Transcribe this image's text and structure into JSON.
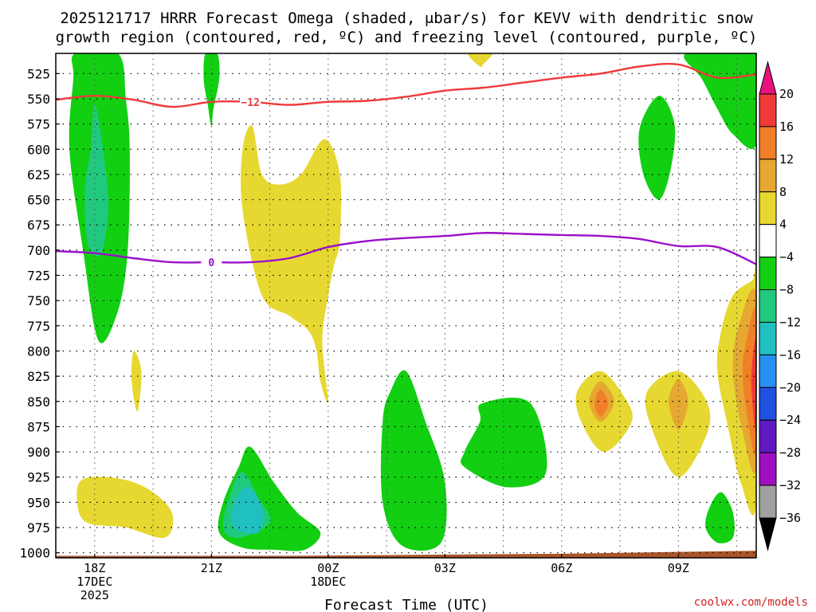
{
  "chart_data": {
    "type": "time-height cross section",
    "title_line1": "2025121717 HRRR Forecast Omega (shaded, μbar/s) for KEVV with dendritic snow",
    "title_line2": "growth region (contoured, red, ºC) and freezing level (contoured, purple, ºC)",
    "xlabel": "Forecast Time (UTC)",
    "credit": "coolwx.com/models",
    "y_ticks": [
      525,
      550,
      575,
      600,
      625,
      650,
      675,
      700,
      725,
      750,
      775,
      800,
      825,
      850,
      875,
      900,
      925,
      950,
      975,
      1000
    ],
    "y_range_hpa": [
      505,
      1005
    ],
    "x_range_hours": [
      -1,
      17
    ],
    "x_ticks": [
      {
        "hour": 0,
        "label": "18Z",
        "sub1": "17DEC",
        "sub2": "2025"
      },
      {
        "hour": 3,
        "label": "21Z",
        "sub1": "",
        "sub2": ""
      },
      {
        "hour": 6,
        "label": "00Z",
        "sub1": "18DEC",
        "sub2": ""
      },
      {
        "hour": 9,
        "label": "03Z",
        "sub1": "",
        "sub2": ""
      },
      {
        "hour": 12,
        "label": "06Z",
        "sub1": "",
        "sub2": ""
      },
      {
        "hour": 15,
        "label": "09Z",
        "sub1": "",
        "sub2": ""
      }
    ],
    "vertical_gridlines_hours": [
      1.5,
      4.5,
      7.5,
      10.5,
      13.5,
      16.5
    ],
    "colorbar": {
      "labels": [
        "20",
        "16",
        "12",
        "8",
        "4",
        "−4",
        "−8",
        "−12",
        "−16",
        "−20",
        "−24",
        "−28",
        "−32",
        "−36"
      ],
      "colors": [
        "#f03a3a",
        "#f07f28",
        "#e6a830",
        "#e6d830",
        "#ffffff",
        "#12cf12",
        "#20c97f",
        "#20c0c0",
        "#2890f0",
        "#2050e0",
        "#6018c0",
        "#a010c0",
        "#a0a0a0"
      ],
      "top_arrow_color": "#e8117f",
      "bottom_arrow_color": "#000000"
    },
    "series": [
      {
        "name": "dendritic snow growth region -12°C",
        "label": "−12",
        "color": "#f03a3a",
        "label_at_hour": 4,
        "points": [
          [
            -1,
            551
          ],
          [
            0,
            547
          ],
          [
            1,
            551
          ],
          [
            2,
            558
          ],
          [
            3,
            553
          ],
          [
            4,
            553
          ],
          [
            5,
            556
          ],
          [
            6,
            553
          ],
          [
            7,
            552
          ],
          [
            8,
            548
          ],
          [
            9,
            542
          ],
          [
            10,
            539
          ],
          [
            11,
            534
          ],
          [
            12,
            529
          ],
          [
            13,
            525
          ],
          [
            14,
            518
          ],
          [
            15,
            516
          ],
          [
            16,
            529
          ],
          [
            17,
            526
          ]
        ]
      },
      {
        "name": "freezing level 0°C",
        "label": "0",
        "color": "#9a10c8",
        "label_at_hour": 3,
        "points": [
          [
            -1,
            701
          ],
          [
            0,
            703
          ],
          [
            1,
            708
          ],
          [
            2,
            712
          ],
          [
            3,
            712
          ],
          [
            4,
            712
          ],
          [
            5,
            708
          ],
          [
            6,
            697
          ],
          [
            7,
            691
          ],
          [
            8,
            688
          ],
          [
            9,
            686
          ],
          [
            10,
            683
          ],
          [
            11,
            684
          ],
          [
            12,
            685
          ],
          [
            13,
            686
          ],
          [
            14,
            689
          ],
          [
            15,
            696
          ],
          [
            16,
            697
          ],
          [
            17,
            714
          ]
        ]
      }
    ],
    "omega_regions": [
      {
        "name": "green-column-18z",
        "category": "-4 to -8",
        "color": "#12cf12",
        "points": [
          [
            -0.5,
            505
          ],
          [
            0.6,
            505
          ],
          [
            0.8,
            550
          ],
          [
            0.9,
            600
          ],
          [
            0.85,
            700
          ],
          [
            0.6,
            760
          ],
          [
            0.1,
            790
          ],
          [
            -0.3,
            700
          ],
          [
            -0.65,
            600
          ],
          [
            -0.55,
            530
          ]
        ]
      },
      {
        "name": "teal-core-18z",
        "category": "-8 to -12",
        "color": "#20c97f",
        "points": [
          [
            0,
            555
          ],
          [
            0.25,
            610
          ],
          [
            0.35,
            660
          ],
          [
            0.2,
            700
          ],
          [
            0,
            705
          ],
          [
            -0.2,
            690
          ],
          [
            -0.25,
            640
          ],
          [
            -0.1,
            600
          ]
        ]
      },
      {
        "name": "green-sliver-21z",
        "category": "-4 to -8",
        "color": "#12cf12",
        "points": [
          [
            2.85,
            505
          ],
          [
            3.15,
            505
          ],
          [
            3.2,
            530
          ],
          [
            3.05,
            560
          ],
          [
            3.0,
            577
          ],
          [
            2.9,
            555
          ],
          [
            2.8,
            530
          ]
        ]
      },
      {
        "name": "yellow-column-2230z",
        "category": "4 to 8",
        "color": "#e6d830",
        "points": [
          [
            3.8,
            600
          ],
          [
            4.05,
            577
          ],
          [
            4.3,
            625
          ],
          [
            4.75,
            635
          ],
          [
            5.3,
            625
          ],
          [
            5.9,
            590
          ],
          [
            6.3,
            625
          ],
          [
            6.3,
            690
          ],
          [
            6.15,
            715
          ],
          [
            6.0,
            745
          ],
          [
            5.85,
            790
          ],
          [
            6.0,
            850
          ],
          [
            5.8,
            830
          ],
          [
            5.7,
            800
          ],
          [
            5.5,
            780
          ],
          [
            5.0,
            765
          ],
          [
            4.3,
            745
          ],
          [
            3.8,
            660
          ]
        ]
      },
      {
        "name": "yellow-blob-19z",
        "category": "4 to 8",
        "color": "#e6d830",
        "points": [
          [
            1.0,
            800
          ],
          [
            1.2,
            820
          ],
          [
            1.1,
            860
          ],
          [
            0.95,
            830
          ]
        ]
      },
      {
        "name": "yellow-blob-18z-lowlevel",
        "category": "4 to 8",
        "color": "#e6d830",
        "points": [
          [
            -0.3,
            927
          ],
          [
            0.7,
            927
          ],
          [
            1.5,
            940
          ],
          [
            2.0,
            962
          ],
          [
            1.8,
            985
          ],
          [
            0.8,
            975
          ],
          [
            -0.2,
            970
          ],
          [
            -0.45,
            950
          ]
        ]
      },
      {
        "name": "green-blob-22z",
        "category": "-4 to -8",
        "color": "#12cf12",
        "points": [
          [
            4.0,
            895
          ],
          [
            4.6,
            930
          ],
          [
            5.2,
            960
          ],
          [
            5.8,
            980
          ],
          [
            5.4,
            997
          ],
          [
            4.6,
            997
          ],
          [
            3.8,
            995
          ],
          [
            3.2,
            980
          ],
          [
            3.3,
            950
          ],
          [
            3.7,
            915
          ]
        ]
      },
      {
        "name": "teal-core-22z",
        "category": "-8 to -12",
        "color": "#20c97f",
        "points": [
          [
            3.8,
            920
          ],
          [
            4.2,
            945
          ],
          [
            4.5,
            970
          ],
          [
            3.7,
            985
          ],
          [
            3.3,
            975
          ],
          [
            3.5,
            940
          ]
        ]
      },
      {
        "name": "cyan-core-22z",
        "category": "-12 to -16",
        "color": "#20c0c0",
        "points": [
          [
            3.9,
            935
          ],
          [
            4.3,
            955
          ],
          [
            4.2,
            980
          ],
          [
            3.6,
            975
          ],
          [
            3.55,
            955
          ]
        ]
      },
      {
        "name": "green-blob-01z",
        "category": "-4 to -8",
        "color": "#12cf12",
        "points": [
          [
            8.0,
            820
          ],
          [
            8.5,
            870
          ],
          [
            9.0,
            930
          ],
          [
            8.9,
            990
          ],
          [
            7.9,
            993
          ],
          [
            7.4,
            950
          ],
          [
            7.4,
            870
          ],
          [
            7.6,
            840
          ]
        ]
      },
      {
        "name": "green-blob-04z",
        "category": "-4 to -8",
        "color": "#12cf12",
        "points": [
          [
            9.95,
            852
          ],
          [
            11.2,
            852
          ],
          [
            11.6,
            920
          ],
          [
            10.6,
            935
          ],
          [
            9.5,
            915
          ],
          [
            9.5,
            900
          ],
          [
            9.9,
            870
          ]
        ]
      },
      {
        "name": "green-blob-08z",
        "category": "-4 to -8",
        "color": "#12cf12",
        "points": [
          [
            14.5,
            547
          ],
          [
            14.9,
            575
          ],
          [
            14.8,
            620
          ],
          [
            14.5,
            650
          ],
          [
            14.1,
            625
          ],
          [
            14.0,
            580
          ]
        ]
      },
      {
        "name": "yellow-blob-07z",
        "category": "4 to 8",
        "color": "#e6d830",
        "points": [
          [
            13.0,
            820
          ],
          [
            13.6,
            845
          ],
          [
            13.8,
            870
          ],
          [
            13.1,
            900
          ],
          [
            12.5,
            870
          ],
          [
            12.4,
            840
          ]
        ]
      },
      {
        "name": "orange-core-07z",
        "category": "8 to 12",
        "color": "#e6a830",
        "points": [
          [
            13.0,
            830
          ],
          [
            13.35,
            850
          ],
          [
            13.0,
            870
          ],
          [
            12.7,
            850
          ]
        ]
      },
      {
        "name": "red-core-07z",
        "category": "12 to 16",
        "color": "#f07f28",
        "points": [
          [
            13.0,
            838
          ],
          [
            13.2,
            852
          ],
          [
            13.0,
            865
          ],
          [
            12.85,
            852
          ]
        ]
      },
      {
        "name": "yellow-blob-09z",
        "category": "4 to 8",
        "color": "#e6d830",
        "points": [
          [
            15.0,
            820
          ],
          [
            15.7,
            848
          ],
          [
            15.75,
            880
          ],
          [
            15.0,
            925
          ],
          [
            14.3,
            875
          ],
          [
            14.2,
            840
          ]
        ]
      },
      {
        "name": "orange-core-09z",
        "category": "8 to 12",
        "color": "#e6a830",
        "points": [
          [
            15.0,
            828
          ],
          [
            15.25,
            850
          ],
          [
            15.0,
            878
          ],
          [
            14.75,
            850
          ]
        ]
      },
      {
        "name": "yellow-edge-11z",
        "category": "4 to 8",
        "color": "#e6d830",
        "points": [
          [
            17.0,
            725
          ],
          [
            17.0,
            950
          ],
          [
            16.6,
            930
          ],
          [
            16.3,
            880
          ],
          [
            16.0,
            820
          ],
          [
            16.1,
            780
          ],
          [
            16.4,
            745
          ],
          [
            16.9,
            730
          ]
        ]
      },
      {
        "name": "orange-edge-11z",
        "category": "8 to 12",
        "color": "#e6a830",
        "points": [
          [
            17.0,
            745
          ],
          [
            17.0,
            915
          ],
          [
            16.65,
            880
          ],
          [
            16.4,
            820
          ],
          [
            16.55,
            775
          ]
        ]
      },
      {
        "name": "red-edge-11z",
        "category": "12 to 16",
        "color": "#f07f28",
        "points": [
          [
            17.0,
            762
          ],
          [
            17.0,
            900
          ],
          [
            16.75,
            860
          ],
          [
            16.65,
            820
          ],
          [
            16.75,
            790
          ]
        ]
      },
      {
        "name": "deep-red-edge-11z",
        "category": "16 to 20",
        "color": "#f03a3a",
        "points": [
          [
            17.0,
            790
          ],
          [
            17.0,
            880
          ],
          [
            16.88,
            840
          ],
          [
            16.9,
            810
          ]
        ]
      },
      {
        "name": "green-upper-right",
        "category": "-4 to -8",
        "color": "#12cf12",
        "points": [
          [
            15.2,
            505
          ],
          [
            17.0,
            505
          ],
          [
            17.0,
            595
          ],
          [
            16.4,
            585
          ],
          [
            16.0,
            560
          ],
          [
            15.6,
            530
          ]
        ]
      },
      {
        "name": "yellow-top-04z",
        "category": "4 to 8",
        "color": "#e6d830",
        "points": [
          [
            9.6,
            505
          ],
          [
            10.2,
            505
          ],
          [
            10.0,
            515
          ],
          [
            9.9,
            518
          ]
        ]
      },
      {
        "name": "green-blob-10z-low",
        "category": "-4 to -8",
        "color": "#12cf12",
        "points": [
          [
            16.1,
            940
          ],
          [
            16.4,
            960
          ],
          [
            16.4,
            985
          ],
          [
            16.0,
            990
          ],
          [
            15.7,
            975
          ],
          [
            15.8,
            955
          ]
        ]
      }
    ],
    "terrain": {
      "color": "#a9552a",
      "points": [
        [
          -1,
          1003
        ],
        [
          5,
          1003
        ],
        [
          12,
          1001
        ],
        [
          17,
          998
        ]
      ]
    }
  }
}
